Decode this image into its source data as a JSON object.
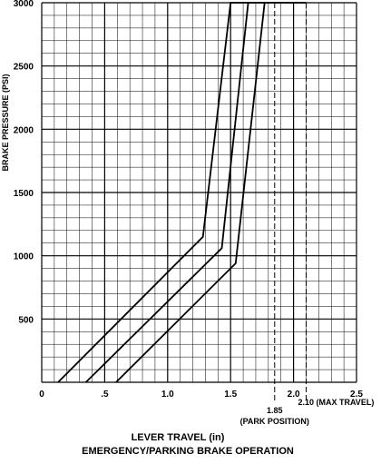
{
  "chart_data": {
    "type": "line",
    "title": "EMERGENCY/PARKING BRAKE OPERATION",
    "xlabel": "LEVER TRAVEL (in)",
    "ylabel": "BRAKE PRESSURE (PSI)",
    "xlim": [
      0,
      2.5
    ],
    "ylim": [
      0,
      3000
    ],
    "grid": true,
    "x_ticks": [
      {
        "value": 0,
        "label": "0"
      },
      {
        "value": 0.5,
        "label": ".5"
      },
      {
        "value": 1.0,
        "label": "1.0"
      },
      {
        "value": 1.5,
        "label": "1.5"
      },
      {
        "value": 2.0,
        "label": "2.0"
      },
      {
        "value": 2.5,
        "label": "2.5"
      }
    ],
    "y_ticks": [
      {
        "value": 500,
        "label": "500"
      },
      {
        "value": 1000,
        "label": "1000"
      },
      {
        "value": 1500,
        "label": "1500"
      },
      {
        "value": 2000,
        "label": "2000"
      },
      {
        "value": 2500,
        "label": "2500"
      },
      {
        "value": 3000,
        "label": "3000"
      }
    ],
    "series": [
      {
        "x": [
          0.13,
          1.28,
          1.5,
          2.1
        ],
        "y": [
          0,
          1150,
          3000,
          3000
        ]
      },
      {
        "x": [
          0.35,
          1.43,
          1.64
        ],
        "y": [
          0,
          1060,
          3000
        ]
      },
      {
        "x": [
          0.59,
          1.54,
          1.77
        ],
        "y": [
          0,
          940,
          3000
        ]
      }
    ],
    "reference_lines": [
      {
        "x": 1.85,
        "label": "1.85",
        "sublabel": "(PARK POSITION)"
      },
      {
        "x": 2.1,
        "label": "2.10 (MAX TRAVEL)"
      }
    ]
  }
}
